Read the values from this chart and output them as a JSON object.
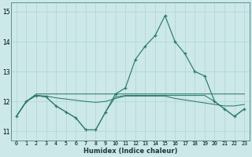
{
  "xlabel": "Humidex (Indice chaleur)",
  "ylabel": "",
  "x": [
    0,
    1,
    2,
    3,
    4,
    5,
    6,
    7,
    8,
    9,
    10,
    11,
    12,
    13,
    14,
    15,
    16,
    17,
    18,
    19,
    20,
    21,
    22,
    23
  ],
  "y_main": [
    11.5,
    12.0,
    12.2,
    12.15,
    11.85,
    11.65,
    11.45,
    11.05,
    11.05,
    11.65,
    12.25,
    12.45,
    13.4,
    13.85,
    14.2,
    14.87,
    14.0,
    13.6,
    13.0,
    12.85,
    12.0,
    11.75,
    11.5,
    11.75
  ],
  "y_min": [
    11.5,
    12.0,
    12.2,
    12.15,
    11.85,
    11.65,
    11.45,
    11.05,
    11.05,
    11.65,
    12.15,
    12.2,
    12.2,
    12.2,
    12.2,
    12.2,
    12.2,
    12.2,
    12.2,
    12.2,
    12.0,
    11.75,
    11.5,
    11.75
  ],
  "y_max": [
    11.5,
    12.0,
    12.25,
    12.25,
    12.25,
    12.25,
    12.25,
    12.25,
    12.25,
    12.25,
    12.25,
    12.25,
    12.25,
    12.25,
    12.25,
    12.25,
    12.25,
    12.25,
    12.25,
    12.25,
    12.25,
    12.25,
    12.25,
    12.25
  ],
  "y_avg": [
    11.5,
    12.0,
    12.2,
    12.18,
    12.12,
    12.08,
    12.04,
    12.0,
    11.97,
    12.0,
    12.1,
    12.18,
    12.18,
    12.18,
    12.18,
    12.18,
    12.1,
    12.05,
    12.0,
    11.95,
    11.9,
    11.85,
    11.85,
    11.9
  ],
  "line_color": "#2d7a6b",
  "bg_color": "#cce8e8",
  "grid_color": "#b0d4d4",
  "ylim": [
    10.7,
    15.3
  ],
  "xlim": [
    -0.5,
    23.5
  ],
  "yticks": [
    11,
    12,
    13,
    14,
    15
  ],
  "xticks": [
    0,
    1,
    2,
    3,
    4,
    5,
    6,
    7,
    8,
    9,
    10,
    11,
    12,
    13,
    14,
    15,
    16,
    17,
    18,
    19,
    20,
    21,
    22,
    23
  ]
}
